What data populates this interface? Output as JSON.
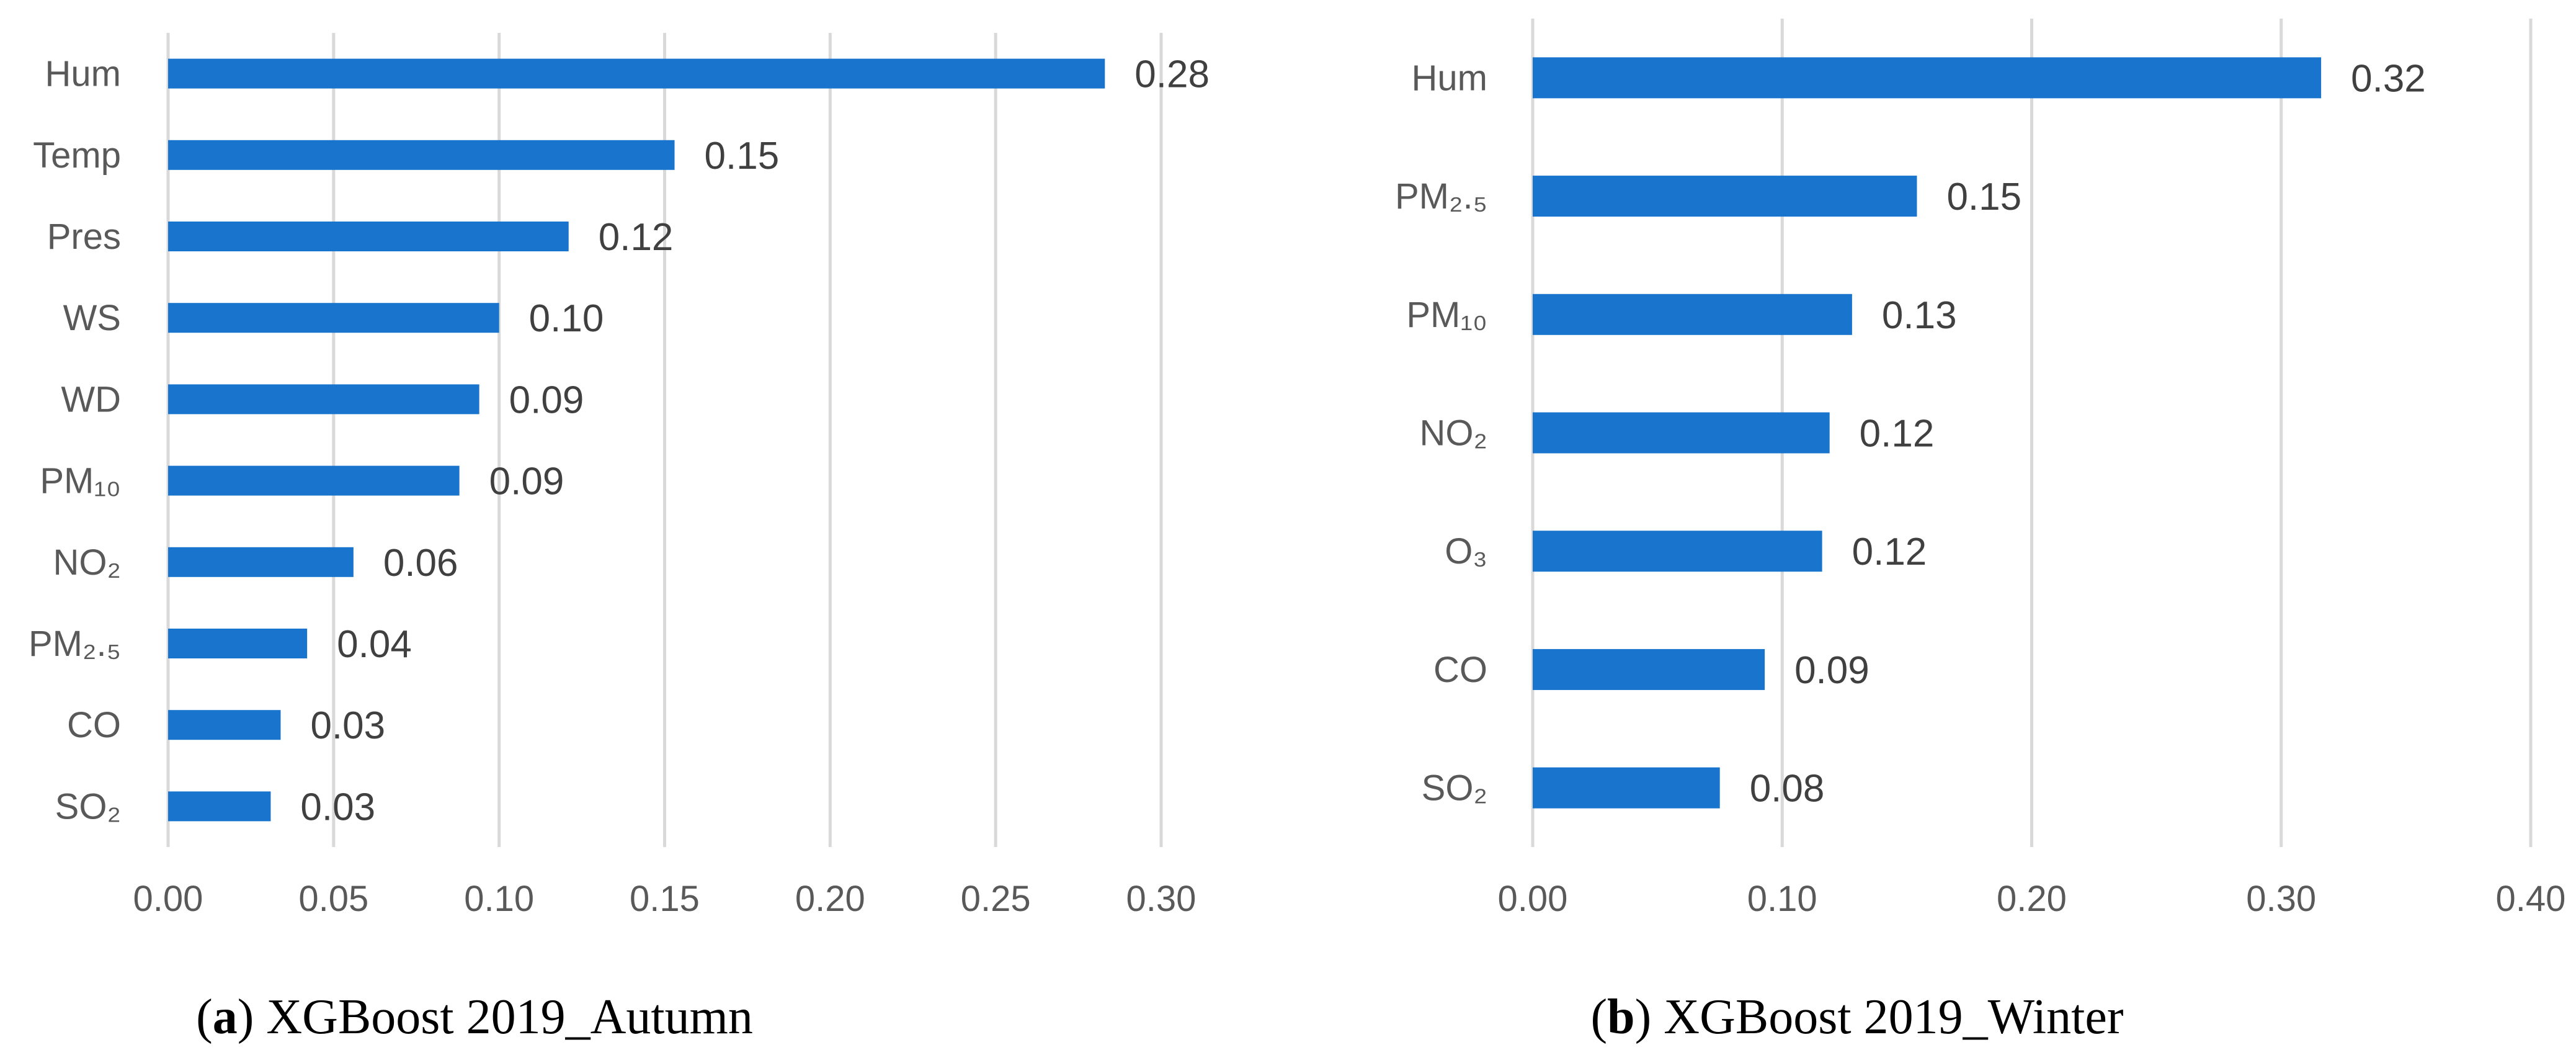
{
  "chart_data": [
    {
      "type": "bar",
      "orientation": "horizontal",
      "caption_letter": "a",
      "caption_text": "XGBoost 2019_Autumn",
      "categories": [
        "Hum",
        "Temp",
        "Pres",
        "WS",
        "WD",
        "PM₁₀",
        "NO₂",
        "PM₂.₅",
        "CO",
        "SO₂"
      ],
      "values": [
        0.283,
        0.153,
        0.121,
        0.1,
        0.094,
        0.088,
        0.056,
        0.042,
        0.034,
        0.031
      ],
      "value_labels": [
        "0.28",
        "0.15",
        "0.12",
        "0.10",
        "0.09",
        "0.09",
        "0.06",
        "0.04",
        "0.03",
        "0.03"
      ],
      "xlim": [
        0,
        0.3
      ],
      "xticks": [
        "0.00",
        "0.05",
        "0.10",
        "0.15",
        "0.20",
        "0.25",
        "0.30"
      ],
      "grid": true,
      "bar_color": "#1874CD"
    },
    {
      "type": "bar",
      "orientation": "horizontal",
      "caption_letter": "b",
      "caption_text": "XGBoost 2019_Winter",
      "categories": [
        "Hum",
        "PM₂.₅",
        "PM₁₀",
        "NO₂",
        "O₃",
        "CO",
        "SO₂"
      ],
      "values": [
        0.316,
        0.154,
        0.128,
        0.119,
        0.116,
        0.093,
        0.075
      ],
      "value_labels": [
        "0.32",
        "0.15",
        "0.13",
        "0.12",
        "0.12",
        "0.09",
        "0.08"
      ],
      "xlim": [
        0,
        0.4
      ],
      "xticks": [
        "0.00",
        "0.10",
        "0.20",
        "0.30",
        "0.40"
      ],
      "grid": true,
      "bar_color": "#1874CD"
    }
  ]
}
